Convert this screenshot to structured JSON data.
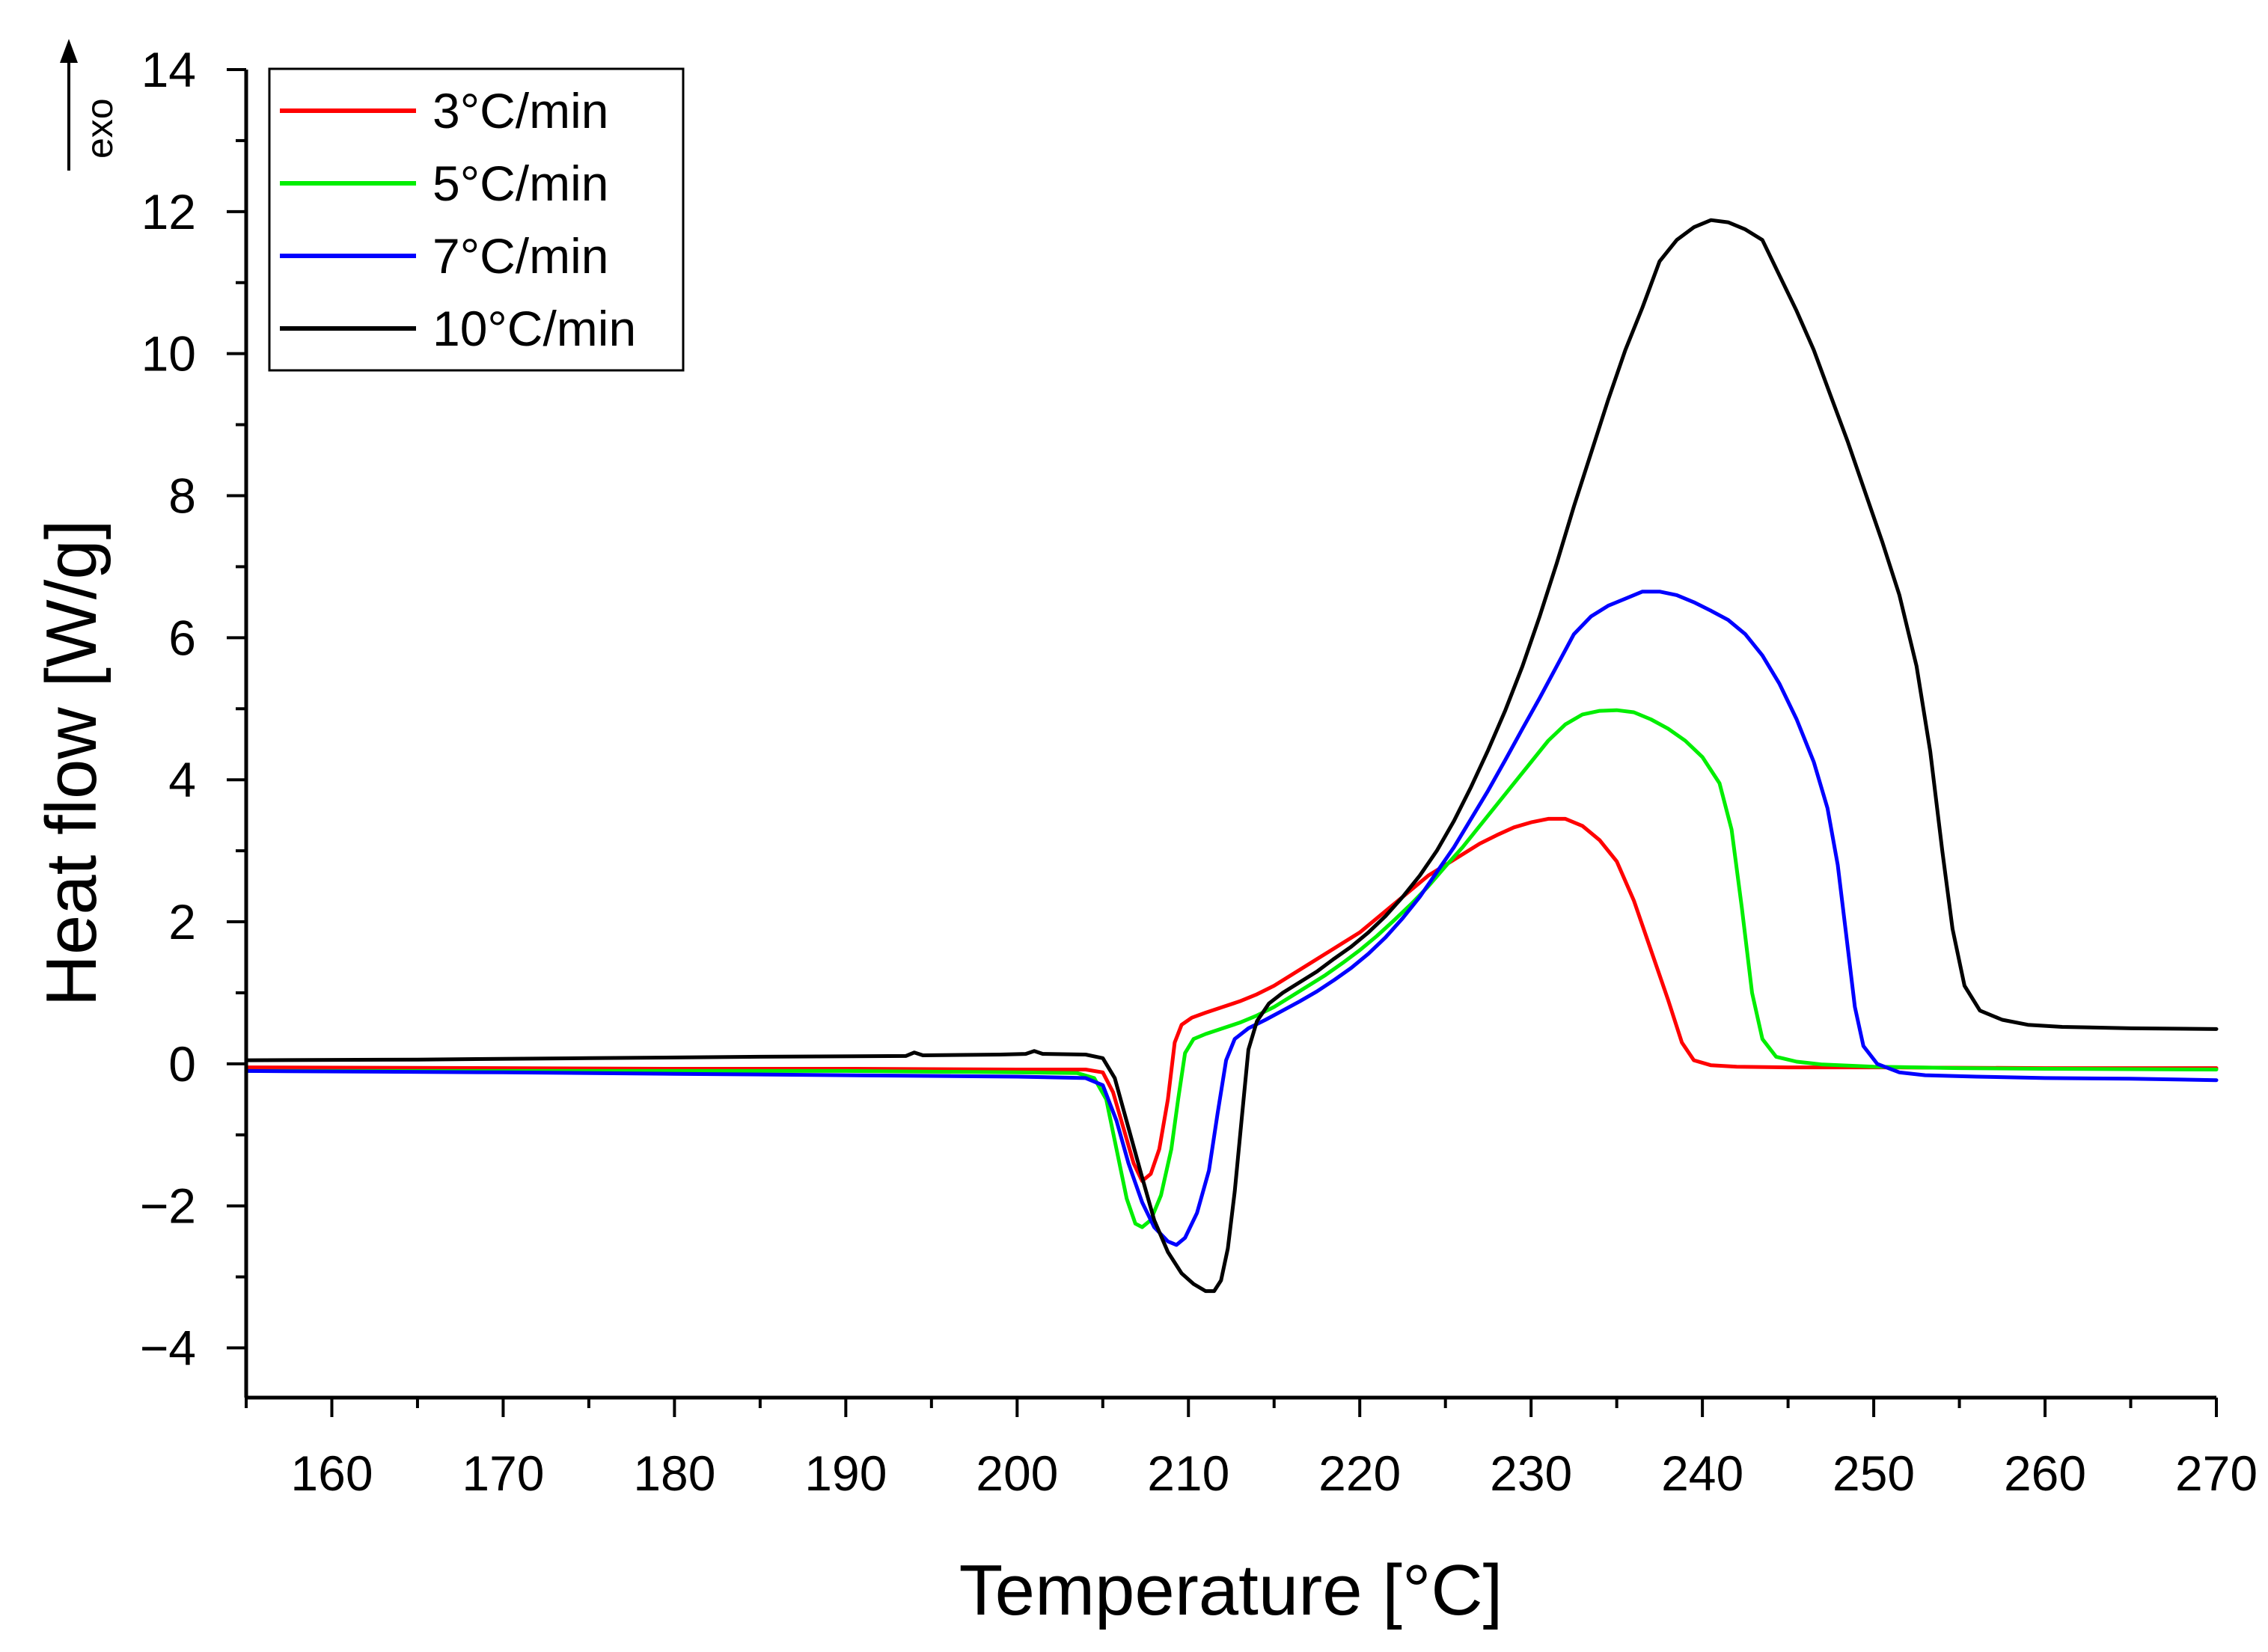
{
  "chart_data": {
    "type": "line",
    "title": "",
    "xlabel": "Temperature [°C]",
    "ylabel": "Heat flow [W/g]",
    "exo_label": "exo",
    "xlim": [
      155,
      270
    ],
    "ylim": [
      -4.7,
      14
    ],
    "xticks": [
      160,
      170,
      180,
      190,
      200,
      210,
      220,
      230,
      240,
      250,
      260,
      270
    ],
    "yticks": [
      -4,
      -2,
      0,
      2,
      4,
      6,
      8,
      10,
      12,
      14
    ],
    "ytick_labels": [
      "−4",
      "−2",
      "0",
      "2",
      "4",
      "6",
      "8",
      "10",
      "12",
      "14"
    ],
    "legend_position": "top-left",
    "series": [
      {
        "name": "3°C/min",
        "color": "#ff0000",
        "points": [
          [
            155,
            -0.05
          ],
          [
            170,
            -0.06
          ],
          [
            180,
            -0.07
          ],
          [
            190,
            -0.07
          ],
          [
            200,
            -0.08
          ],
          [
            204,
            -0.08
          ],
          [
            205,
            -0.12
          ],
          [
            205.6,
            -0.4
          ],
          [
            206.2,
            -0.9
          ],
          [
            206.8,
            -1.4
          ],
          [
            207.3,
            -1.65
          ],
          [
            207.8,
            -1.55
          ],
          [
            208.3,
            -1.2
          ],
          [
            208.8,
            -0.5
          ],
          [
            209.2,
            0.3
          ],
          [
            209.6,
            0.55
          ],
          [
            210.2,
            0.65
          ],
          [
            211,
            0.72
          ],
          [
            212,
            0.8
          ],
          [
            213,
            0.88
          ],
          [
            214,
            0.98
          ],
          [
            215,
            1.1
          ],
          [
            216,
            1.25
          ],
          [
            217,
            1.4
          ],
          [
            218,
            1.55
          ],
          [
            219,
            1.7
          ],
          [
            220,
            1.85
          ],
          [
            221,
            2.05
          ],
          [
            222,
            2.25
          ],
          [
            223,
            2.45
          ],
          [
            224,
            2.65
          ],
          [
            225,
            2.8
          ],
          [
            226,
            2.95
          ],
          [
            227,
            3.1
          ],
          [
            228,
            3.22
          ],
          [
            229,
            3.33
          ],
          [
            230,
            3.4
          ],
          [
            231,
            3.45
          ],
          [
            232,
            3.45
          ],
          [
            233,
            3.35
          ],
          [
            234,
            3.15
          ],
          [
            235,
            2.85
          ],
          [
            236,
            2.3
          ],
          [
            237,
            1.6
          ],
          [
            238,
            0.9
          ],
          [
            238.8,
            0.3
          ],
          [
            239.5,
            0.05
          ],
          [
            240.5,
            -0.02
          ],
          [
            242,
            -0.04
          ],
          [
            245,
            -0.05
          ],
          [
            250,
            -0.05
          ],
          [
            260,
            -0.06
          ],
          [
            270,
            -0.06
          ]
        ]
      },
      {
        "name": "5°C/min",
        "color": "#00ee00",
        "points": [
          [
            155,
            -0.1
          ],
          [
            170,
            -0.1
          ],
          [
            180,
            -0.1
          ],
          [
            190,
            -0.1
          ],
          [
            200,
            -0.12
          ],
          [
            203.5,
            -0.13
          ],
          [
            204.5,
            -0.2
          ],
          [
            205.2,
            -0.5
          ],
          [
            205.8,
            -1.2
          ],
          [
            206.4,
            -1.9
          ],
          [
            206.9,
            -2.25
          ],
          [
            207.3,
            -2.3
          ],
          [
            207.8,
            -2.2
          ],
          [
            208.4,
            -1.85
          ],
          [
            209,
            -1.2
          ],
          [
            209.4,
            -0.5
          ],
          [
            209.8,
            0.15
          ],
          [
            210.3,
            0.35
          ],
          [
            211,
            0.42
          ],
          [
            212,
            0.5
          ],
          [
            213,
            0.58
          ],
          [
            214,
            0.68
          ],
          [
            215,
            0.8
          ],
          [
            216,
            0.95
          ],
          [
            217,
            1.1
          ],
          [
            218,
            1.25
          ],
          [
            219,
            1.42
          ],
          [
            220,
            1.6
          ],
          [
            221,
            1.8
          ],
          [
            222,
            2.02
          ],
          [
            223,
            2.25
          ],
          [
            224,
            2.5
          ],
          [
            225,
            2.78
          ],
          [
            226,
            3.05
          ],
          [
            227,
            3.35
          ],
          [
            228,
            3.65
          ],
          [
            229,
            3.95
          ],
          [
            230,
            4.25
          ],
          [
            231,
            4.55
          ],
          [
            232,
            4.78
          ],
          [
            233,
            4.92
          ],
          [
            234,
            4.97
          ],
          [
            235,
            4.98
          ],
          [
            236,
            4.95
          ],
          [
            237,
            4.85
          ],
          [
            238,
            4.72
          ],
          [
            239,
            4.55
          ],
          [
            240,
            4.32
          ],
          [
            241,
            3.95
          ],
          [
            241.7,
            3.3
          ],
          [
            242.3,
            2.2
          ],
          [
            242.9,
            1.0
          ],
          [
            243.5,
            0.35
          ],
          [
            244.3,
            0.1
          ],
          [
            245.5,
            0.03
          ],
          [
            247,
            -0.01
          ],
          [
            250,
            -0.04
          ],
          [
            255,
            -0.06
          ],
          [
            260,
            -0.07
          ],
          [
            270,
            -0.08
          ]
        ]
      },
      {
        "name": "7°C/min",
        "color": "#0000ff",
        "points": [
          [
            155,
            -0.1
          ],
          [
            170,
            -0.12
          ],
          [
            180,
            -0.14
          ],
          [
            190,
            -0.16
          ],
          [
            200,
            -0.18
          ],
          [
            204,
            -0.2
          ],
          [
            205,
            -0.3
          ],
          [
            205.8,
            -0.8
          ],
          [
            206.5,
            -1.4
          ],
          [
            207.3,
            -1.95
          ],
          [
            208,
            -2.3
          ],
          [
            208.8,
            -2.5
          ],
          [
            209.3,
            -2.55
          ],
          [
            209.8,
            -2.45
          ],
          [
            210.5,
            -2.1
          ],
          [
            211.2,
            -1.5
          ],
          [
            211.7,
            -0.7
          ],
          [
            212.2,
            0.05
          ],
          [
            212.7,
            0.35
          ],
          [
            213.5,
            0.5
          ],
          [
            214.5,
            0.62
          ],
          [
            215.5,
            0.75
          ],
          [
            216.5,
            0.88
          ],
          [
            217.5,
            1.02
          ],
          [
            218.5,
            1.18
          ],
          [
            219.5,
            1.35
          ],
          [
            220.5,
            1.55
          ],
          [
            221.5,
            1.78
          ],
          [
            222.5,
            2.05
          ],
          [
            223.5,
            2.35
          ],
          [
            224.5,
            2.7
          ],
          [
            225.5,
            3.05
          ],
          [
            226.5,
            3.45
          ],
          [
            227.5,
            3.85
          ],
          [
            228.5,
            4.28
          ],
          [
            229.5,
            4.72
          ],
          [
            230.5,
            5.15
          ],
          [
            231.5,
            5.6
          ],
          [
            232.5,
            6.05
          ],
          [
            233.5,
            6.3
          ],
          [
            234.5,
            6.45
          ],
          [
            235.5,
            6.55
          ],
          [
            236.5,
            6.65
          ],
          [
            237.5,
            6.65
          ],
          [
            238.5,
            6.6
          ],
          [
            239.5,
            6.5
          ],
          [
            240.5,
            6.38
          ],
          [
            241.5,
            6.25
          ],
          [
            242.5,
            6.05
          ],
          [
            243.5,
            5.75
          ],
          [
            244.5,
            5.35
          ],
          [
            245.5,
            4.85
          ],
          [
            246.5,
            4.25
          ],
          [
            247.3,
            3.6
          ],
          [
            247.9,
            2.8
          ],
          [
            248.4,
            1.8
          ],
          [
            248.9,
            0.8
          ],
          [
            249.4,
            0.25
          ],
          [
            250.2,
            0.0
          ],
          [
            251.5,
            -0.12
          ],
          [
            253,
            -0.16
          ],
          [
            256,
            -0.18
          ],
          [
            260,
            -0.2
          ],
          [
            265,
            -0.21
          ],
          [
            270,
            -0.23
          ]
        ]
      },
      {
        "name": "10°C/min",
        "color": "#000000",
        "points": [
          [
            155,
            0.05
          ],
          [
            165,
            0.06
          ],
          [
            175,
            0.08
          ],
          [
            185,
            0.1
          ],
          [
            193.5,
            0.11
          ],
          [
            194,
            0.16
          ],
          [
            194.5,
            0.12
          ],
          [
            199,
            0.13
          ],
          [
            200.5,
            0.14
          ],
          [
            201,
            0.18
          ],
          [
            201.5,
            0.14
          ],
          [
            204,
            0.13
          ],
          [
            205,
            0.08
          ],
          [
            205.7,
            -0.2
          ],
          [
            206.5,
            -0.9
          ],
          [
            207.3,
            -1.6
          ],
          [
            208,
            -2.2
          ],
          [
            208.8,
            -2.65
          ],
          [
            209.6,
            -2.95
          ],
          [
            210.3,
            -3.1
          ],
          [
            211,
            -3.2
          ],
          [
            211.5,
            -3.2
          ],
          [
            211.9,
            -3.05
          ],
          [
            212.3,
            -2.6
          ],
          [
            212.7,
            -1.8
          ],
          [
            213.1,
            -0.8
          ],
          [
            213.5,
            0.2
          ],
          [
            214,
            0.6
          ],
          [
            214.7,
            0.85
          ],
          [
            215.5,
            1.0
          ],
          [
            216.5,
            1.15
          ],
          [
            217.5,
            1.3
          ],
          [
            218.5,
            1.48
          ],
          [
            219.5,
            1.65
          ],
          [
            220.5,
            1.85
          ],
          [
            221.5,
            2.08
          ],
          [
            222.5,
            2.35
          ],
          [
            223.5,
            2.65
          ],
          [
            224.5,
            3.0
          ],
          [
            225.5,
            3.42
          ],
          [
            226.5,
            3.9
          ],
          [
            227.5,
            4.42
          ],
          [
            228.5,
            4.98
          ],
          [
            229.5,
            5.6
          ],
          [
            230.5,
            6.3
          ],
          [
            231.5,
            7.05
          ],
          [
            232.5,
            7.85
          ],
          [
            233.5,
            8.6
          ],
          [
            234.5,
            9.35
          ],
          [
            235.5,
            10.05
          ],
          [
            236.5,
            10.65
          ],
          [
            237.5,
            11.3
          ],
          [
            238.5,
            11.6
          ],
          [
            239.5,
            11.78
          ],
          [
            240.5,
            11.88
          ],
          [
            241.5,
            11.85
          ],
          [
            242.5,
            11.75
          ],
          [
            243.5,
            11.6
          ],
          [
            244.5,
            11.1
          ],
          [
            245.5,
            10.6
          ],
          [
            246.5,
            10.05
          ],
          [
            247.5,
            9.4
          ],
          [
            248.5,
            8.75
          ],
          [
            249.5,
            8.05
          ],
          [
            250.5,
            7.35
          ],
          [
            251.5,
            6.6
          ],
          [
            252.5,
            5.6
          ],
          [
            253.3,
            4.4
          ],
          [
            254,
            3.0
          ],
          [
            254.6,
            1.9
          ],
          [
            255.3,
            1.1
          ],
          [
            256.2,
            0.75
          ],
          [
            257.5,
            0.62
          ],
          [
            259,
            0.55
          ],
          [
            261,
            0.52
          ],
          [
            265,
            0.5
          ],
          [
            270,
            0.49
          ]
        ]
      }
    ]
  }
}
